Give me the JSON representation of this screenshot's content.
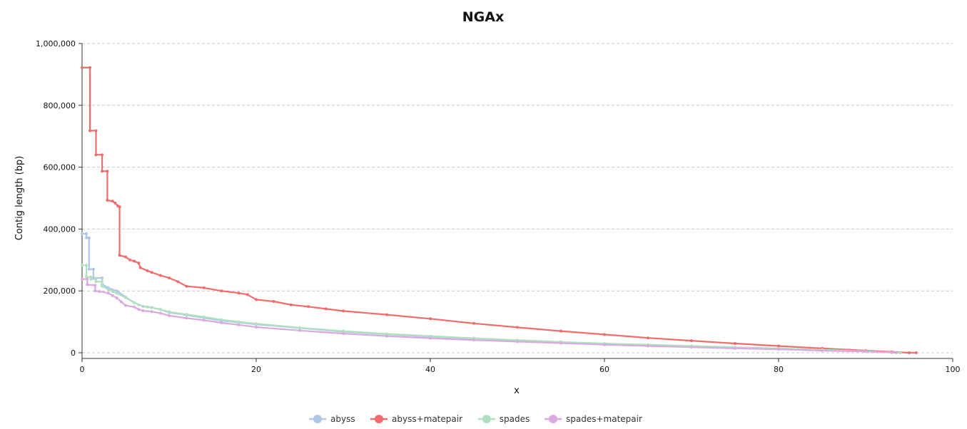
{
  "chart_data": {
    "type": "line",
    "title": "NGAx",
    "xlabel": "x",
    "ylabel": "Contig length (bp)",
    "xlim": [
      0,
      100
    ],
    "ylim": [
      0,
      1000000
    ],
    "x_ticks": [
      0,
      20,
      40,
      60,
      80,
      100
    ],
    "x_tick_labels": [
      "0",
      "20",
      "40",
      "60",
      "80",
      "100"
    ],
    "y_ticks": [
      0,
      200000,
      400000,
      600000,
      800000,
      1000000
    ],
    "y_tick_labels": [
      "0",
      "200,000",
      "400,000",
      "600,000",
      "800,000",
      "1,000,000"
    ],
    "grid": "horizontal dashed",
    "legend_position": "bottom-center",
    "series": [
      {
        "name": "abyss",
        "color": "#aec7e8",
        "points": [
          [
            0,
            385000
          ],
          [
            0.5,
            385000
          ],
          [
            0.5,
            372000
          ],
          [
            0.8,
            372000
          ],
          [
            0.8,
            270000
          ],
          [
            1.3,
            270000
          ],
          [
            1.3,
            242000
          ],
          [
            2.3,
            242000
          ],
          [
            2.3,
            222000
          ],
          [
            3,
            210000
          ],
          [
            4,
            200000
          ],
          [
            5,
            180000
          ],
          [
            6,
            162000
          ],
          [
            7,
            150000
          ],
          [
            8,
            146000
          ],
          [
            9,
            140000
          ],
          [
            10,
            130000
          ],
          [
            12,
            122000
          ],
          [
            14,
            113000
          ],
          [
            16,
            104000
          ],
          [
            18,
            98000
          ],
          [
            20,
            92000
          ],
          [
            25,
            80000
          ],
          [
            30,
            68000
          ],
          [
            35,
            60000
          ],
          [
            40,
            52000
          ],
          [
            45,
            46000
          ],
          [
            50,
            40000
          ],
          [
            55,
            34000
          ],
          [
            60,
            29000
          ],
          [
            65,
            25000
          ],
          [
            70,
            21000
          ],
          [
            75,
            17000
          ],
          [
            80,
            13000
          ],
          [
            85,
            9000
          ],
          [
            90,
            5000
          ],
          [
            93,
            2000
          ],
          [
            94,
            0
          ]
        ]
      },
      {
        "name": "abyss+matepair",
        "color": "#f26b6b",
        "points": [
          [
            0,
            922000
          ],
          [
            0.9,
            922000
          ],
          [
            0.9,
            718000
          ],
          [
            1.6,
            718000
          ],
          [
            1.6,
            640000
          ],
          [
            2.3,
            640000
          ],
          [
            2.3,
            587000
          ],
          [
            2.9,
            587000
          ],
          [
            2.9,
            493000
          ],
          [
            3.5,
            490000
          ],
          [
            3.8,
            484000
          ],
          [
            4.1,
            475000
          ],
          [
            4.3,
            472000
          ],
          [
            4.3,
            315000
          ],
          [
            5,
            310000
          ],
          [
            5.5,
            300000
          ],
          [
            6,
            296000
          ],
          [
            6.5,
            290000
          ],
          [
            6.7,
            275000
          ],
          [
            7.5,
            265000
          ],
          [
            8,
            260000
          ],
          [
            9,
            250000
          ],
          [
            10,
            242000
          ],
          [
            11,
            230000
          ],
          [
            12,
            215000
          ],
          [
            14,
            210000
          ],
          [
            16,
            200000
          ],
          [
            18,
            193000
          ],
          [
            19,
            188000
          ],
          [
            20,
            172000
          ],
          [
            22,
            166000
          ],
          [
            24,
            155000
          ],
          [
            26,
            149000
          ],
          [
            28,
            142000
          ],
          [
            30,
            135000
          ],
          [
            35,
            123000
          ],
          [
            40,
            110000
          ],
          [
            45,
            95000
          ],
          [
            50,
            82000
          ],
          [
            55,
            70000
          ],
          [
            60,
            59000
          ],
          [
            65,
            48000
          ],
          [
            70,
            39000
          ],
          [
            75,
            30000
          ],
          [
            80,
            22000
          ],
          [
            85,
            14000
          ],
          [
            90,
            7000
          ],
          [
            93,
            3000
          ],
          [
            95,
            0
          ],
          [
            95.8,
            0
          ]
        ]
      },
      {
        "name": "spades",
        "color": "#b0e0c0",
        "points": [
          [
            0,
            283000
          ],
          [
            0.5,
            283000
          ],
          [
            0.5,
            245000
          ],
          [
            1,
            245000
          ],
          [
            1,
            238000
          ],
          [
            1.6,
            238000
          ],
          [
            1.6,
            230000
          ],
          [
            2.3,
            230000
          ],
          [
            2.3,
            215000
          ],
          [
            3,
            205000
          ],
          [
            3.5,
            198000
          ],
          [
            4,
            192000
          ],
          [
            5,
            178000
          ],
          [
            6,
            162000
          ],
          [
            6.5,
            155000
          ],
          [
            7.5,
            148000
          ],
          [
            9,
            140000
          ],
          [
            10,
            132000
          ],
          [
            12,
            124000
          ],
          [
            14,
            116000
          ],
          [
            16,
            107000
          ],
          [
            18,
            100000
          ],
          [
            20,
            94000
          ],
          [
            25,
            81000
          ],
          [
            30,
            70000
          ],
          [
            35,
            61000
          ],
          [
            40,
            54000
          ],
          [
            45,
            47000
          ],
          [
            50,
            41000
          ],
          [
            55,
            35000
          ],
          [
            60,
            30000
          ],
          [
            65,
            26000
          ],
          [
            70,
            22000
          ],
          [
            75,
            18000
          ],
          [
            80,
            14000
          ],
          [
            85,
            10000
          ],
          [
            90,
            5000
          ],
          [
            93,
            1000
          ],
          [
            94,
            0
          ]
        ]
      },
      {
        "name": "spades+matepair",
        "color": "#d9a9e0",
        "points": [
          [
            0,
            238000
          ],
          [
            0.6,
            238000
          ],
          [
            0.6,
            220000
          ],
          [
            1.5,
            218000
          ],
          [
            1.5,
            200000
          ],
          [
            2,
            198000
          ],
          [
            3,
            193000
          ],
          [
            3.5,
            185000
          ],
          [
            4,
            177000
          ],
          [
            4.5,
            165000
          ],
          [
            5,
            153000
          ],
          [
            6,
            148000
          ],
          [
            6.5,
            140000
          ],
          [
            7,
            136000
          ],
          [
            8,
            133000
          ],
          [
            9,
            128000
          ],
          [
            10,
            120000
          ],
          [
            12,
            112000
          ],
          [
            14,
            105000
          ],
          [
            16,
            97000
          ],
          [
            18,
            90000
          ],
          [
            20,
            83000
          ],
          [
            25,
            72000
          ],
          [
            30,
            62000
          ],
          [
            35,
            54000
          ],
          [
            40,
            47000
          ],
          [
            45,
            41000
          ],
          [
            50,
            36000
          ],
          [
            55,
            31000
          ],
          [
            60,
            26000
          ],
          [
            65,
            22000
          ],
          [
            70,
            18000
          ],
          [
            75,
            14000
          ],
          [
            80,
            11000
          ],
          [
            85,
            7000
          ],
          [
            90,
            4000
          ],
          [
            93,
            1000
          ],
          [
            93.5,
            0
          ]
        ]
      }
    ]
  }
}
